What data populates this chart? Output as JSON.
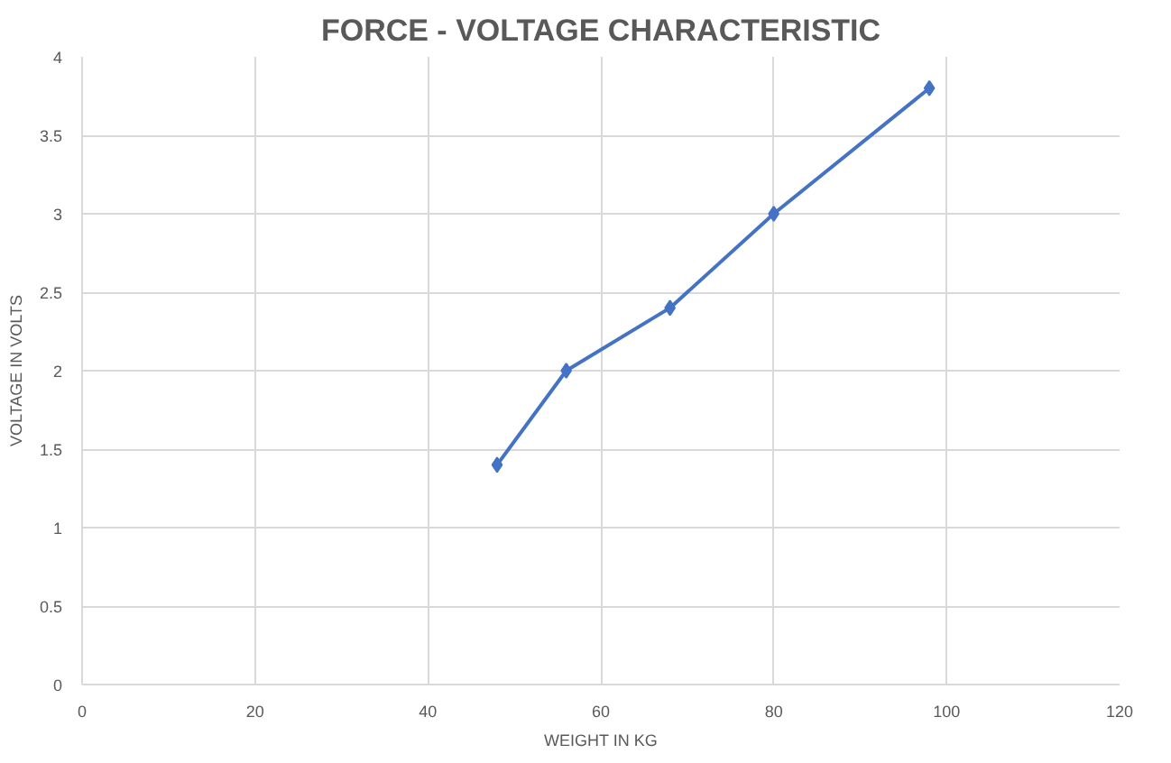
{
  "chart_data": {
    "type": "line",
    "title": "FORCE - VOLTAGE CHARACTERISTIC",
    "xlabel": "WEIGHT IN KG",
    "ylabel": "VOLTAGE IN VOLTS",
    "x": [
      48,
      56,
      68,
      80,
      98
    ],
    "series": [
      {
        "color": "#4472c4",
        "values": [
          1.4,
          2,
          2.4,
          3,
          3.8
        ]
      }
    ],
    "xlim": [
      0,
      120
    ],
    "xticks": [
      0,
      20,
      40,
      60,
      80,
      100,
      120
    ],
    "ylim": [
      0,
      4
    ],
    "yticks": [
      0,
      0.5,
      1,
      1.5,
      2,
      2.5,
      3,
      3.5,
      4
    ],
    "grid": true,
    "marker": "diamond",
    "line_style": "solid"
  }
}
